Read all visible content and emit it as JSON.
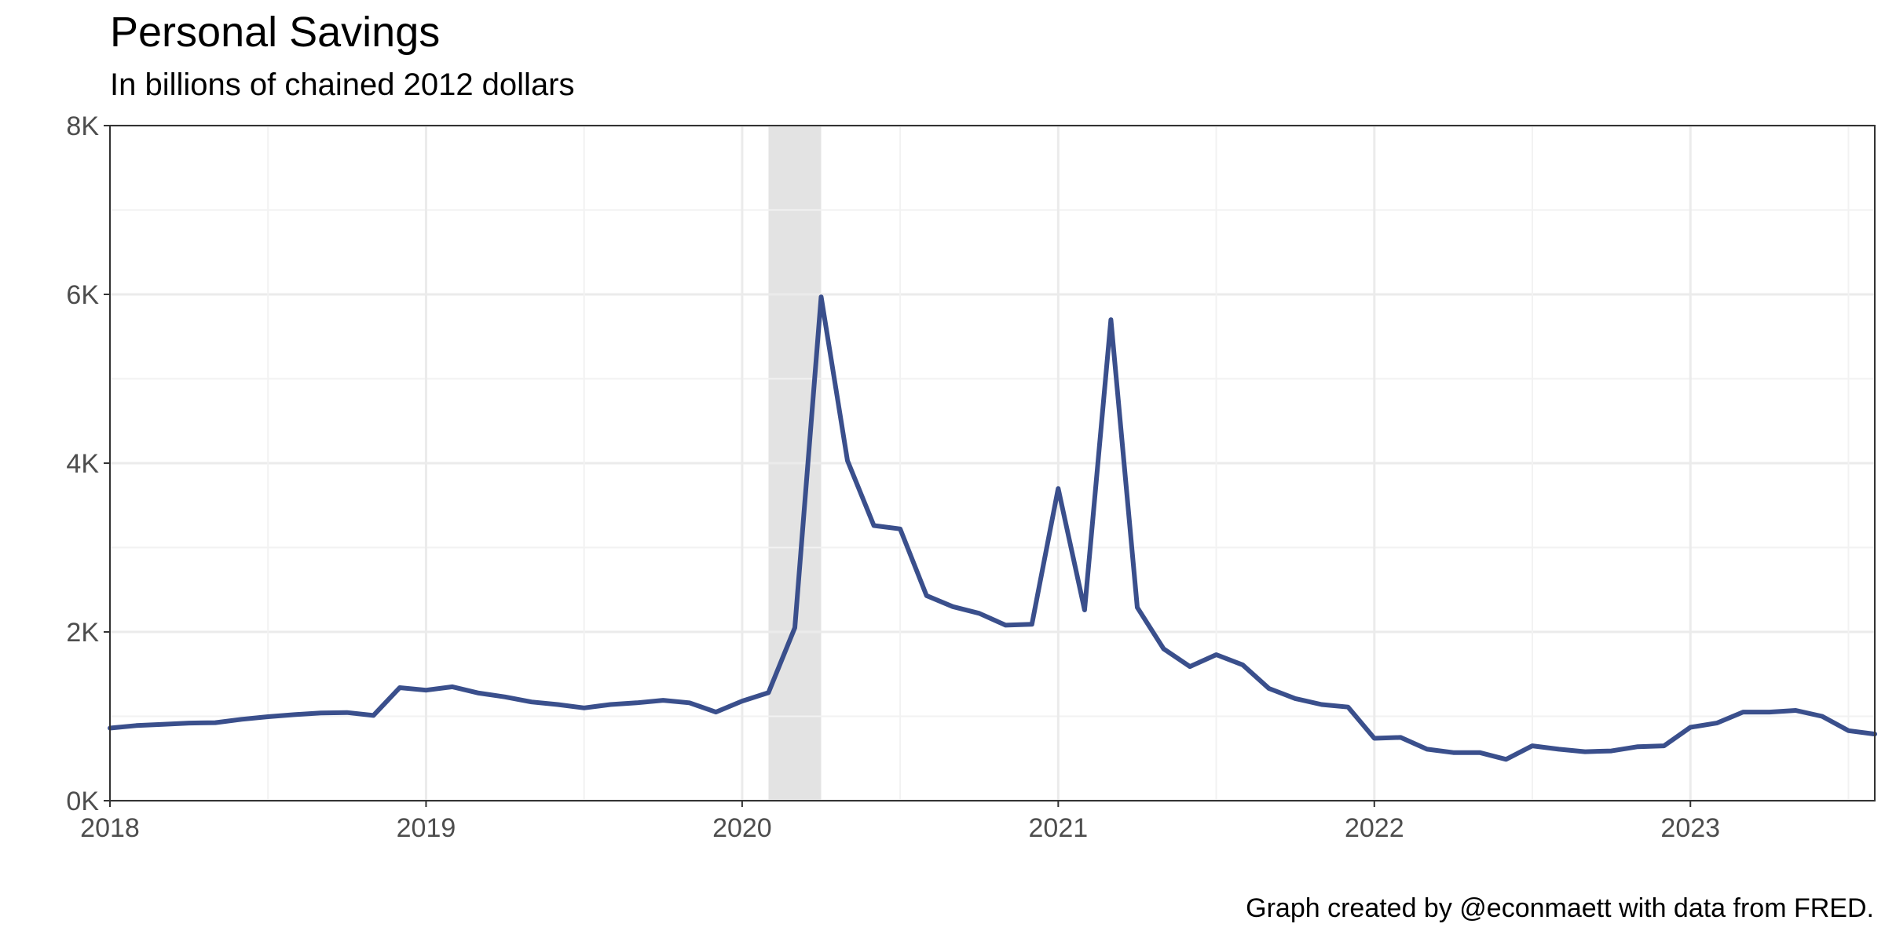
{
  "chart_data": {
    "type": "line",
    "title": "Personal Savings",
    "subtitle": "In billions of chained 2012 dollars",
    "caption": "Graph created by @econmaett with data from FRED.",
    "xlabel": "",
    "ylabel": "",
    "ylim": [
      0,
      8000
    ],
    "xlim": [
      "2018-01-01",
      "2023-08-01"
    ],
    "y_ticks": [
      {
        "value": 0,
        "label": "0K"
      },
      {
        "value": 2000,
        "label": "2K"
      },
      {
        "value": 4000,
        "label": "4K"
      },
      {
        "value": 6000,
        "label": "6K"
      },
      {
        "value": 8000,
        "label": "8K"
      }
    ],
    "x_ticks": [
      {
        "value": "2018-01-01",
        "label": "2018"
      },
      {
        "value": "2019-01-01",
        "label": "2019"
      },
      {
        "value": "2020-01-01",
        "label": "2020"
      },
      {
        "value": "2021-01-01",
        "label": "2021"
      },
      {
        "value": "2022-01-01",
        "label": "2022"
      },
      {
        "value": "2023-01-01",
        "label": "2023"
      }
    ],
    "grid": true,
    "recession_shading": [
      {
        "start": "2020-02-01",
        "end": "2020-04-01"
      }
    ],
    "series": [
      {
        "color": "#3a4f8c",
        "x": [
          "2018-01",
          "2018-02",
          "2018-03",
          "2018-04",
          "2018-05",
          "2018-06",
          "2018-07",
          "2018-08",
          "2018-09",
          "2018-10",
          "2018-11",
          "2018-12",
          "2019-01",
          "2019-02",
          "2019-03",
          "2019-04",
          "2019-05",
          "2019-06",
          "2019-07",
          "2019-08",
          "2019-09",
          "2019-10",
          "2019-11",
          "2019-12",
          "2020-01",
          "2020-02",
          "2020-03",
          "2020-04",
          "2020-05",
          "2020-06",
          "2020-07",
          "2020-08",
          "2020-09",
          "2020-10",
          "2020-11",
          "2020-12",
          "2021-01",
          "2021-02",
          "2021-03",
          "2021-04",
          "2021-05",
          "2021-06",
          "2021-07",
          "2021-08",
          "2021-09",
          "2021-10",
          "2021-11",
          "2021-12",
          "2022-01",
          "2022-02",
          "2022-03",
          "2022-04",
          "2022-05",
          "2022-06",
          "2022-07",
          "2022-08",
          "2022-09",
          "2022-10",
          "2022-11",
          "2022-12",
          "2023-01",
          "2023-02",
          "2023-03",
          "2023-04",
          "2023-05",
          "2023-06",
          "2023-07",
          "2023-08"
        ],
        "values": [
          860,
          890,
          905,
          920,
          925,
          965,
          995,
          1020,
          1040,
          1045,
          1010,
          1340,
          1310,
          1350,
          1275,
          1230,
          1170,
          1140,
          1100,
          1140,
          1160,
          1190,
          1160,
          1050,
          1180,
          1280,
          2050,
          5970,
          4030,
          3260,
          3220,
          2430,
          2300,
          2220,
          2080,
          2090,
          3700,
          2260,
          5700,
          2290,
          1800,
          1590,
          1730,
          1610,
          1330,
          1210,
          1140,
          1110,
          740,
          750,
          610,
          570,
          570,
          490,
          650,
          610,
          580,
          590,
          640,
          650,
          870,
          920,
          1050,
          1050,
          1070,
          1000,
          830,
          790
        ]
      }
    ]
  }
}
